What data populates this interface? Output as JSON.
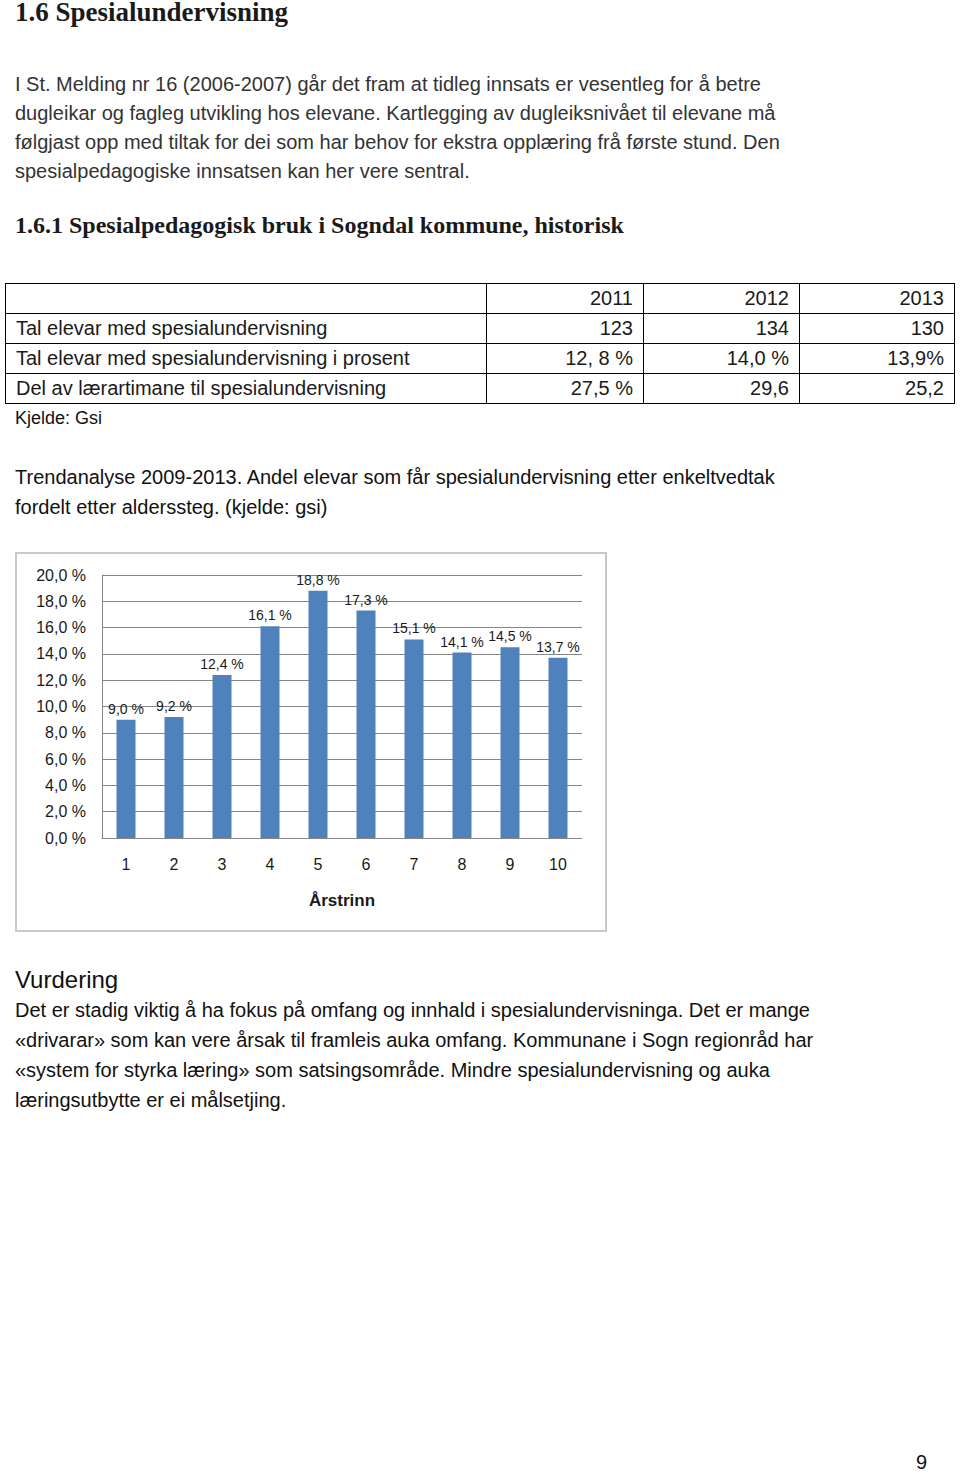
{
  "heading": "1.6 Spesialundervisning",
  "intro": {
    "lines": [
      "I St. Melding nr 16 (2006-2007) går det fram at tidleg innsats er vesentleg for å betre",
      "dugleikar og fagleg utvikling hos elevane.  Kartlegging av dugleiksnivået til elevane må",
      "følgjast opp med tiltak for dei som har behov for ekstra opplæring frå første stund.  Den",
      "spesialpedagogiske innsatsen kan her vere sentral."
    ]
  },
  "subheading": "1.6.1 Spesialpedagogisk bruk i Sogndal kommune, historisk",
  "table": {
    "header": [
      "",
      "2011",
      "2012",
      "2013"
    ],
    "rows": [
      [
        "Tal elevar med spesialundervisning",
        "123",
        "134",
        "130"
      ],
      [
        "Tal elevar med spesialundervisning i prosent",
        "12, 8 %",
        "14,0 %",
        "13,9%"
      ],
      [
        "Del av lærartimane til spesialundervisning",
        "27,5 %",
        "29,6",
        "25,2"
      ]
    ],
    "source": "Kjelde: Gsi"
  },
  "chart_caption": {
    "lines": [
      "Trendanalyse 2009-2013.  Andel elevar som får spesialundervisning etter enkeltvedtak",
      "fordelt etter alderssteg. (kjelde: gsi)"
    ]
  },
  "chart_data": {
    "type": "bar",
    "x_label": "Årstrinn",
    "categories": [
      "1",
      "2",
      "3",
      "4",
      "5",
      "6",
      "7",
      "8",
      "9",
      "10"
    ],
    "values": [
      9.0,
      9.2,
      12.4,
      16.1,
      18.8,
      17.3,
      15.1,
      14.1,
      14.5,
      13.7
    ],
    "value_labels": [
      "9,0 %",
      "9,2 %",
      "12,4 %",
      "16,1 %",
      "18,8 %",
      "17,3 %",
      "15,1 %",
      "14,1 %",
      "14,5 %",
      "13,7 %"
    ],
    "color": "#4f81bd",
    "ylim": [
      0,
      20
    ],
    "yticks": [
      {
        "value": 0,
        "label": "0,0 %"
      },
      {
        "value": 2,
        "label": "2,0 %"
      },
      {
        "value": 4,
        "label": "4,0 %"
      },
      {
        "value": 6,
        "label": "6,0 %"
      },
      {
        "value": 8,
        "label": "8,0 %"
      },
      {
        "value": 10,
        "label": "10,0 %"
      },
      {
        "value": 12,
        "label": "12,0 %"
      },
      {
        "value": 14,
        "label": "14,0 %"
      },
      {
        "value": 16,
        "label": "16,0 %"
      },
      {
        "value": 18,
        "label": "18,0 %"
      },
      {
        "value": 20,
        "label": "20,0 %"
      }
    ],
    "grid": true,
    "data_labels": true
  },
  "assessment": {
    "title": "Vurdering",
    "lines": [
      "Det er stadig viktig å ha fokus på omfang og innhald i spesialundervisninga.  Det er mange",
      "«drivarar» som kan vere årsak til framleis auka omfang.  Kommunane i Sogn regionråd har",
      "«system for styrka læring» som satsingsområde.  Mindre spesialundervisning og auka",
      "læringsutbytte er ei målsetjing."
    ]
  },
  "page_number": "9"
}
